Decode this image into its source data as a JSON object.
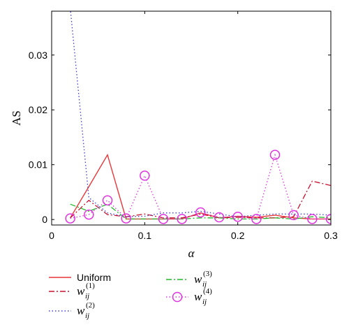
{
  "chart_data": {
    "type": "line",
    "xlabel": "α",
    "ylabel": "AS",
    "xlim": [
      0,
      0.3
    ],
    "ylim": [
      -0.001,
      0.038
    ],
    "x_ticks": [
      0,
      0.1,
      0.2,
      0.3
    ],
    "x_tick_labels": [
      "0",
      "0.1",
      "0.2",
      "0.3"
    ],
    "y_ticks": [
      0,
      0.01,
      0.02,
      0.03
    ],
    "y_tick_labels": [
      "0",
      "0.01",
      "0.02",
      "0.03"
    ],
    "grid": false,
    "legend_position": "bottom",
    "x": [
      0.02,
      0.04,
      0.06,
      0.08,
      0.1,
      0.12,
      0.14,
      0.16,
      0.18,
      0.2,
      0.22,
      0.24,
      0.26,
      0.28,
      0.3
    ],
    "series": [
      {
        "name": "Uniform",
        "color": "#e8363a",
        "style": "solid",
        "marker": "none",
        "values": [
          0.0003,
          0.006,
          0.0118,
          0.0001,
          0.0001,
          0.0001,
          0.0001,
          0.0012,
          0.0003,
          0.0006,
          0.0004,
          0.0008,
          0.0003,
          0.0001,
          0.0001
        ]
      },
      {
        "name": "w_ij^(1)",
        "color": "#c8102e",
        "style": "dashdot",
        "marker": "none",
        "values": [
          0.0003,
          0.0035,
          0.0009,
          0.0005,
          0.001,
          0.0003,
          0.0003,
          0.001,
          0.0003,
          0.0004,
          0.0003,
          0.0003,
          0.0005,
          0.007,
          0.0062
        ]
      },
      {
        "name": "w_ij^(2)",
        "color": "#3b3bd6",
        "style": "dotted",
        "marker": "none",
        "values": [
          0.0385,
          0.004,
          0.0012,
          0.0005,
          0.0006,
          0.0012,
          0.0012,
          0.0015,
          0.001,
          0.0005,
          0.0008,
          0.001,
          0.001,
          0.001,
          0.0008
        ]
      },
      {
        "name": "w_ij^(3)",
        "color": "#22b82b",
        "style": "dashdot",
        "marker": "none",
        "values": [
          0.0028,
          0.0015,
          0.0028,
          0.0001,
          0.0001,
          0.0001,
          0.0001,
          0.0003,
          0.0003,
          0.0001,
          0.0001,
          0.0003,
          0.0001,
          0.0005,
          0.0003
        ]
      },
      {
        "name": "w_ij^(4)",
        "color": "#e033e0",
        "style": "dotted",
        "marker": "circle",
        "values": [
          0.0002,
          0.0009,
          0.0035,
          0.0002,
          0.008,
          0.0001,
          0.0001,
          0.0013,
          0.0004,
          0.0005,
          0.0001,
          0.0118,
          0.0008,
          0.0001,
          0.0001
        ]
      }
    ],
    "legend": [
      {
        "label": "Uniform",
        "series": 0
      },
      {
        "w": "w",
        "sub": "ij",
        "sup": "(1)",
        "series": 1
      },
      {
        "w": "w",
        "sub": "ij",
        "sup": "(2)",
        "series": 2
      },
      {
        "w": "w",
        "sub": "ij",
        "sup": "(3)",
        "series": 3
      },
      {
        "w": "w",
        "sub": "ij",
        "sup": "(4)",
        "series": 4
      }
    ]
  }
}
